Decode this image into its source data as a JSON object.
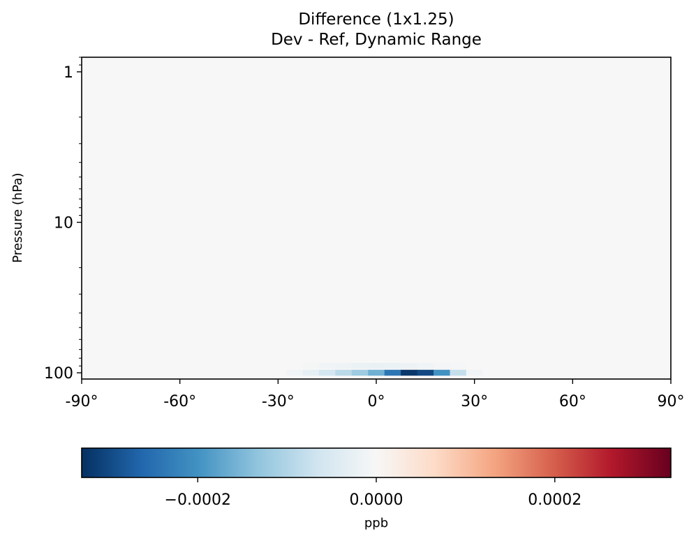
{
  "chart_data": {
    "type": "heatmap",
    "title": "Difference (1x1.25)",
    "subtitle": "Dev - Ref, Dynamic Range",
    "xlabel": "",
    "ylabel": "Pressure (hPa)",
    "x_axis": {
      "scale": "linear",
      "range": [
        -90,
        90
      ],
      "ticks": [
        -90,
        -60,
        -30,
        0,
        30,
        60,
        90
      ],
      "tick_labels": [
        "-90°",
        "-60°",
        "-30°",
        "0°",
        "30°",
        "60°",
        "90°"
      ]
    },
    "y_axis": {
      "scale": "log",
      "inverted": true,
      "range": [
        0.8,
        110
      ],
      "ticks": [
        1,
        10,
        100
      ],
      "tick_labels": [
        "1",
        "10",
        "100"
      ]
    },
    "colorbar": {
      "colormap": "RdBu_r",
      "label": "ppb",
      "range": [
        -0.00033,
        0.00033
      ],
      "ticks": [
        -0.0002,
        0.0,
        0.0002
      ],
      "tick_labels": [
        "−0.0002",
        "0.0000",
        "0.0002"
      ],
      "color_stops": [
        "#053061",
        "#2166ac",
        "#4393c3",
        "#92c5de",
        "#d1e5f0",
        "#f7f7f7",
        "#fddbc7",
        "#f4a582",
        "#d6604d",
        "#b2182b",
        "#67001f"
      ]
    },
    "field_summary": {
      "background_value": 0.0,
      "anomaly": {
        "pressure_hPa": 100,
        "latitudes": [
          -30,
          -25,
          -20,
          -15,
          -10,
          -5,
          0,
          5,
          10,
          15,
          20,
          25,
          30
        ],
        "values": [
          -0.0,
          -1e-05,
          -3e-05,
          -6e-05,
          -9e-05,
          -0.00012,
          -0.00016,
          -0.00024,
          -0.00032,
          -0.0003,
          -0.0002,
          -8e-05,
          -1e-05
        ]
      },
      "secondary_row": {
        "pressure_hPa": 90,
        "latitudes": [
          -20,
          -15,
          -10,
          -5,
          0,
          5,
          10,
          15,
          20,
          25
        ],
        "values": [
          -5e-06,
          -1e-05,
          -1.5e-05,
          -2e-05,
          -2.2e-05,
          -2e-05,
          -1.8e-05,
          -1.2e-05,
          -7e-06,
          -3e-06
        ]
      }
    }
  }
}
